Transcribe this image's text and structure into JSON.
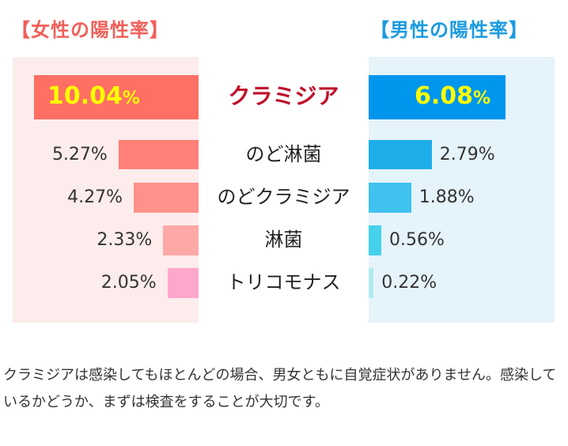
{
  "chart_data": {
    "type": "bar",
    "title_female": "【女性の陽性率】",
    "title_male": "【男性の陽性率】",
    "categories": [
      "クラミジア",
      "のど淋菌",
      "のどクラミジア",
      "淋菌",
      "トリコモナス"
    ],
    "series": [
      {
        "name": "女性",
        "values": [
          10.04,
          5.27,
          4.27,
          2.33,
          2.05
        ],
        "labels": [
          "10.04",
          "5.27%",
          "4.27%",
          "2.33%",
          "2.05%"
        ],
        "colors": [
          "#ff6f63",
          "#ff8078",
          "#ff918a",
          "#ffa8a8",
          "#ffa6cc"
        ]
      },
      {
        "name": "男性",
        "values": [
          6.08,
          2.79,
          1.88,
          0.56,
          0.22
        ],
        "labels": [
          "6.08",
          "2.79%",
          "1.88%",
          "0.56%",
          "0.22%"
        ],
        "colors": [
          "#0096ee",
          "#1eaeea",
          "#40c2ef",
          "#45d0ec",
          "#aeeaef"
        ]
      }
    ],
    "percent_sign": "%",
    "highlight_color": "#c0102a"
  },
  "note": "クラミジアは感染してもほとんどの場合、男女ともに自覚症状がありません。感染しているかどうか、まずは検査をすることが大切です。"
}
